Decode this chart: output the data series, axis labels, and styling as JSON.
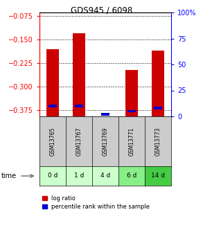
{
  "title": "GDS945 / 6098",
  "categories": [
    "GSM13765",
    "GSM13767",
    "GSM13769",
    "GSM13771",
    "GSM13773"
  ],
  "time_labels": [
    "0 d",
    "1 d",
    "4 d",
    "6 d",
    "14 d"
  ],
  "log_ratios": [
    -0.181,
    -0.132,
    null,
    -0.247,
    -0.185
  ],
  "percentile_ranks": [
    10,
    10,
    2,
    5,
    8
  ],
  "ylim_left": [
    -0.395,
    -0.065
  ],
  "yticks_left": [
    -0.375,
    -0.3,
    -0.225,
    -0.15,
    -0.075
  ],
  "yticks_right": [
    0,
    25,
    50,
    75,
    100
  ],
  "bar_color": "#cc0000",
  "blue_color": "#0000cc",
  "time_bg_colors": [
    "#ccffcc",
    "#ccffcc",
    "#ccffcc",
    "#88ee88",
    "#44cc44"
  ],
  "sample_bg_color": "#cccccc",
  "legend_red_label": "log ratio",
  "legend_blue_label": "percentile rank within the sample"
}
